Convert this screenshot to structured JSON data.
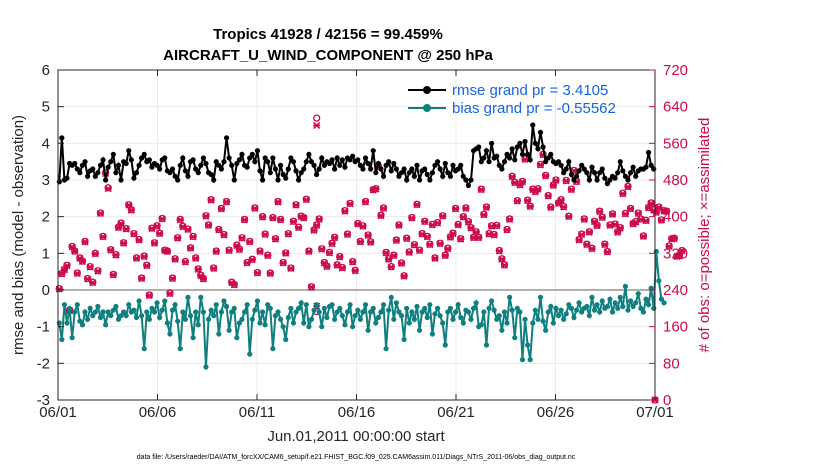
{
  "chart_data": {
    "type": "line",
    "title_line1": "Tropics 41928 / 42156 = 99.459%",
    "title_line2": "AIRCRAFT_U_WIND_COMPONENT @ 250 hPa",
    "ylabel": "rmse and bias (model - observation)",
    "y2label": "# of obs: o=possible; ×=assimilated",
    "xlabel": "Jun.01,2011 00:00:00 start",
    "footer": "data file: /Users/raeder/DAI/ATM_forcXX/CAM6_setup/f.e21.FHIST_BGC.f09_025.CAM6assim.011/Diags_NTrS_2011-06/obs_diag_output.nc",
    "xlim": [
      0,
      30
    ],
    "ylim": [
      -3,
      6
    ],
    "y2lim": [
      0,
      720
    ],
    "xticks": [
      0,
      5,
      10,
      15,
      20,
      25,
      30
    ],
    "xtick_labels": [
      "06/01",
      "06/06",
      "06/11",
      "06/16",
      "06/21",
      "06/26",
      "07/01"
    ],
    "yticks": [
      -3,
      -2,
      -1,
      0,
      1,
      2,
      3,
      4,
      5,
      6
    ],
    "ytick_labels": [
      "-3",
      "-2",
      "-1",
      "0",
      "1",
      "2",
      "3",
      "4",
      "5",
      "6"
    ],
    "y2ticks": [
      0,
      80,
      160,
      240,
      320,
      400,
      480,
      560,
      640,
      720
    ],
    "y2tick_labels": [
      "0",
      "80",
      "160",
      "240",
      "320",
      "400",
      "480",
      "560",
      "640",
      "720"
    ],
    "legend": [
      {
        "name": "rmse grand pr = 3.4105",
        "color": "#000000"
      },
      {
        "name": "bias grand pr = -0.55562",
        "color": "#0f7f7f"
      }
    ],
    "colors": {
      "rmse": "#000000",
      "bias": "#0f7f7f",
      "obs": "#cc0a4d",
      "zero_line": "#b0b0b0"
    },
    "series": [
      {
        "name": "rmse",
        "values": [
          2.95,
          4.15,
          3.0,
          3.05,
          3.45,
          3.4,
          3.45,
          3.3,
          3.2,
          3.4,
          3.5,
          3.1,
          3.25,
          3.3,
          3.1,
          3.2,
          3.4,
          3.55,
          3.0,
          3.35,
          3.5,
          3.7,
          3.2,
          3.4,
          3.0,
          3.5,
          3.45,
          3.8,
          3.55,
          3.05,
          3.2,
          3.4,
          3.6,
          3.7,
          3.5,
          3.55,
          3.35,
          3.45,
          3.4,
          3.3,
          3.55,
          3.6,
          3.25,
          3.2,
          3.3,
          3.1,
          3.0,
          3.4,
          3.6,
          3.25,
          3.1,
          3.5,
          3.55,
          3.3,
          3.2,
          3.4,
          3.6,
          3.45,
          3.2,
          3.15,
          3.0,
          3.5,
          3.4,
          3.3,
          3.5,
          4.15,
          3.6,
          3.4,
          3.0,
          3.45,
          3.55,
          3.7,
          3.4,
          3.35,
          3.6,
          3.7,
          3.5,
          3.8,
          3.25,
          3.0,
          3.6,
          3.5,
          3.2,
          3.6,
          3.3,
          3.0,
          3.4,
          3.15,
          3.05,
          3.3,
          3.6,
          3.5,
          3.25,
          3.0,
          3.2,
          3.3,
          3.5,
          3.7,
          3.5,
          3.4,
          3.15,
          3.3,
          3.6,
          3.4,
          3.5,
          3.45,
          3.55,
          3.3,
          3.6,
          3.4,
          3.55,
          3.35,
          3.6,
          3.55,
          3.65,
          3.5,
          3.55,
          3.4,
          3.3,
          3.6,
          3.45,
          3.3,
          3.8,
          3.2,
          3.45,
          3.3,
          3.1,
          3.4,
          3.5,
          3.25,
          3.45,
          3.3,
          3.1,
          3.2,
          3.3,
          3.0,
          3.2,
          3.3,
          3.1,
          3.4,
          3.0,
          3.25,
          3.3,
          3.15,
          3.0,
          3.2,
          3.4,
          3.5,
          3.3,
          3.1,
          3.45,
          3.2,
          3.1,
          3.4,
          3.25,
          3.3,
          3.4,
          3.1,
          3.0,
          2.85,
          3.0,
          3.8,
          3.85,
          3.9,
          3.5,
          3.6,
          3.8,
          3.5,
          4.0,
          3.6,
          3.65,
          3.4,
          3.3,
          3.5,
          3.7,
          3.6,
          3.85,
          3.55,
          3.9,
          4.0,
          3.7,
          4.05,
          3.7,
          3.55,
          4.5,
          4.0,
          3.85,
          4.3,
          3.9,
          3.5,
          3.6,
          3.7,
          3.5,
          3.45,
          3.5,
          3.4,
          3.2,
          3.3,
          3.5,
          3.15,
          3.0,
          3.1,
          3.25,
          3.4,
          3.3,
          3.2,
          3.0,
          3.35,
          3.2,
          3.0,
          3.2,
          3.3,
          3.05,
          2.9,
          3.0,
          3.1,
          3.05,
          3.2,
          3.5,
          3.25,
          3.1,
          3.0,
          3.2,
          3.35,
          3.1,
          3.25,
          3.3,
          3.3,
          3.35,
          3.75,
          3.4,
          3.3
        ]
      },
      {
        "name": "bias",
        "values": [
          -0.9,
          -1.35,
          -0.4,
          -0.9,
          -0.5,
          -1.3,
          -0.6,
          -0.4,
          -0.85,
          -0.95,
          -0.6,
          -0.8,
          -0.5,
          -0.7,
          -0.6,
          -0.45,
          -0.75,
          -0.6,
          -0.95,
          -0.6,
          -0.7,
          -0.55,
          -0.45,
          -0.8,
          -0.7,
          -0.6,
          -0.7,
          -0.4,
          -0.6,
          -0.55,
          -0.75,
          -0.3,
          -0.7,
          -1.6,
          -0.6,
          -0.8,
          -0.5,
          -0.6,
          -0.35,
          -0.75,
          -0.55,
          -0.3,
          -0.9,
          -1.2,
          -0.55,
          -0.4,
          -0.85,
          -1.6,
          -0.6,
          -0.8,
          -0.2,
          -0.7,
          -1.3,
          -0.6,
          -0.95,
          -0.2,
          -0.6,
          -2.1,
          -0.8,
          -0.55,
          -0.7,
          -0.4,
          -1.2,
          -0.6,
          -0.3,
          -0.45,
          -1.1,
          -0.6,
          -0.5,
          -1.3,
          -0.9,
          -0.8,
          -0.6,
          -0.4,
          -1.75,
          -0.8,
          -0.55,
          -0.3,
          -0.9,
          -0.6,
          -0.95,
          -0.4,
          -0.5,
          -1.6,
          -0.7,
          -0.6,
          -0.8,
          -1.0,
          -1.35,
          -0.75,
          -0.5,
          -0.9,
          -0.6,
          -0.5,
          -0.35,
          -0.9,
          -0.4,
          -1.0,
          -0.8,
          -0.55,
          -0.4,
          -0.6,
          -1.0,
          -0.5,
          -0.75,
          -0.45,
          -0.4,
          -0.8,
          -0.6,
          -0.5,
          -0.7,
          -0.95,
          -0.6,
          -0.4,
          -1.0,
          -0.7,
          -0.55,
          -0.8,
          -0.6,
          -0.4,
          -1.1,
          -0.6,
          -0.5,
          -0.9,
          -0.75,
          -0.6,
          -0.4,
          -1.6,
          -0.55,
          -0.2,
          -0.8,
          -0.35,
          -0.6,
          -0.7,
          -1.35,
          -0.5,
          -0.9,
          -0.6,
          -0.8,
          -0.45,
          -1.1,
          -0.6,
          -0.5,
          -0.75,
          -0.4,
          -1.2,
          -0.65,
          -0.5,
          -0.7,
          -0.9,
          -1.5,
          -0.6,
          -0.5,
          -0.8,
          -0.6,
          -0.4,
          -0.75,
          -0.9,
          -0.55,
          -0.6,
          -0.8,
          -0.5,
          -0.35,
          -1.0,
          -0.95,
          -0.6,
          -1.5,
          -0.5,
          -0.3,
          -0.55,
          -0.8,
          -0.7,
          -1.1,
          -0.6,
          -0.9,
          -0.2,
          -0.55,
          -1.3,
          -0.5,
          -0.6,
          -1.9,
          -0.8,
          -1.5,
          -1.9,
          -0.9,
          -0.55,
          -0.8,
          -0.2,
          -0.85,
          -1.1,
          -0.6,
          -0.45,
          -0.9,
          -0.5,
          -0.7,
          -0.55,
          -0.8,
          -0.65,
          -0.4,
          -0.5,
          -0.75,
          -0.55,
          -0.35,
          -0.6,
          -0.5,
          -0.45,
          -0.7,
          -0.2,
          -0.55,
          -0.4,
          -0.6,
          -0.3,
          -0.5,
          -0.45,
          -0.25,
          -0.6,
          -0.35,
          -0.5,
          -0.2,
          -0.45,
          0.1,
          -0.55,
          -0.3,
          -0.45,
          -0.35,
          -0.1,
          -0.5,
          -0.6,
          -0.25,
          -0.4,
          0.05,
          -0.5,
          1.05,
          0.25,
          -0.25,
          -0.35
        ]
      },
      {
        "name": "obs_possible",
        "values": [
          243,
          276,
          285,
          294,
          196,
          335,
          325,
          277,
          310,
          303,
          346,
          265,
          291,
          257,
          320,
          282,
          408,
          357,
          496,
          463,
          328,
          274,
          317,
          377,
          386,
          343,
          374,
          426,
          415,
          363,
          310,
          350,
          266,
          314,
          294,
          229,
          375,
          343,
          380,
          364,
          396,
          327,
          325,
          233,
          266,
          308,
          354,
          394,
          379,
          302,
          373,
          332,
          357,
          310,
          286,
          272,
          265,
          402,
          382,
          437,
          288,
          325,
          372,
          418,
          361,
          433,
          327,
          257,
          252,
          338,
          329,
          354,
          394,
          300,
          346,
          307,
          419,
          278,
          325,
          400,
          362,
          316,
          277,
          398,
          352,
          433,
          394,
          300,
          321,
          363,
          288,
          390,
          426,
          377,
          401,
          398,
          438,
          325,
          247,
          371,
          382,
          395,
          330,
          300,
          292,
          322,
          342,
          355,
          295,
          313,
          289,
          413,
          362,
          429,
          302,
          283,
          385,
          346,
          380,
          433,
          360,
          345,
          459,
          461,
          510,
          403,
          419,
          322,
          308,
          291,
          316,
          349,
          382,
          299,
          271,
          353,
          323,
          398,
          339,
          427,
          327,
          363,
          390,
          357,
          340,
          383,
          310,
          387,
          342,
          402,
          316,
          331,
          356,
          364,
          418,
          383,
          352,
          400,
          419,
          389,
          376,
          355,
          367,
          355,
          460,
          405,
          421,
          363,
          380,
          361,
          381,
          326,
          308,
          295,
          372,
          395,
          488,
          475,
          435,
          470,
          477,
          526,
          436,
          423,
          460,
          455,
          461,
          514,
          536,
          490,
          446,
          421,
          469,
          480,
          430,
          437,
          422,
          479,
          401,
          460,
          501,
          477,
          350,
          362,
          395,
          340,
          367,
          331,
          390,
          381,
          412,
          399,
          340,
          324,
          382,
          406,
          384,
          367,
          376,
          451,
          407,
          466,
          418,
          385,
          389,
          408,
          395,
          358,
          392,
          420,
          430,
          415,
          410,
          421,
          393,
          413,
          412,
          336,
          352,
          353,
          314,
          315,
          326
        ]
      },
      {
        "name": "obs_assimilated",
        "values": [
          242,
          275,
          284,
          293,
          195,
          334,
          324,
          276,
          309,
          302,
          345,
          264,
          290,
          256,
          319,
          281,
          407,
          356,
          494,
          461,
          327,
          273,
          316,
          376,
          385,
          342,
          373,
          425,
          414,
          362,
          309,
          349,
          265,
          313,
          293,
          228,
          374,
          342,
          379,
          363,
          395,
          326,
          324,
          232,
          265,
          307,
          353,
          393,
          378,
          301,
          372,
          331,
          356,
          309,
          285,
          271,
          264,
          401,
          381,
          436,
          287,
          324,
          371,
          417,
          360,
          432,
          326,
          256,
          251,
          337,
          328,
          353,
          393,
          299,
          345,
          306,
          418,
          277,
          324,
          399,
          361,
          315,
          276,
          397,
          351,
          432,
          393,
          299,
          320,
          362,
          287,
          389,
          425,
          376,
          400,
          397,
          437,
          324,
          246,
          370,
          381,
          394,
          329,
          299,
          291,
          321,
          341,
          354,
          294,
          312,
          288,
          412,
          361,
          428,
          301,
          282,
          384,
          345,
          379,
          432,
          359,
          344,
          458,
          460,
          509,
          402,
          418,
          321,
          307,
          290,
          315,
          348,
          381,
          298,
          270,
          352,
          322,
          397,
          338,
          426,
          326,
          362,
          389,
          356,
          339,
          382,
          309,
          386,
          341,
          401,
          315,
          330,
          355,
          363,
          417,
          382,
          351,
          399,
          418,
          388,
          375,
          354,
          366,
          354,
          459,
          404,
          420,
          362,
          379,
          360,
          380,
          325,
          307,
          294,
          371,
          394,
          487,
          474,
          434,
          469,
          476,
          525,
          435,
          422,
          459,
          454,
          460,
          513,
          535,
          489,
          445,
          420,
          468,
          479,
          429,
          436,
          421,
          478,
          400,
          459,
          500,
          476,
          349,
          361,
          394,
          339,
          366,
          330,
          389,
          380,
          411,
          398,
          339,
          323,
          381,
          405,
          383,
          366,
          375,
          450,
          406,
          465,
          417,
          384,
          388,
          407,
          394,
          357,
          391,
          419,
          429,
          414,
          409,
          420,
          392,
          412,
          411,
          335,
          351,
          352,
          313,
          314,
          325
        ]
      },
      {
        "name": "obs_possible_extra",
        "values": [
          615,
          193,
          0
        ],
        "x": [
          13.0,
          13.0,
          30.0
        ]
      },
      {
        "name": "obs_assimilated_extra",
        "values": [
          599,
          205,
          0
        ],
        "x": [
          13.0,
          13.0,
          30.0
        ]
      }
    ]
  }
}
